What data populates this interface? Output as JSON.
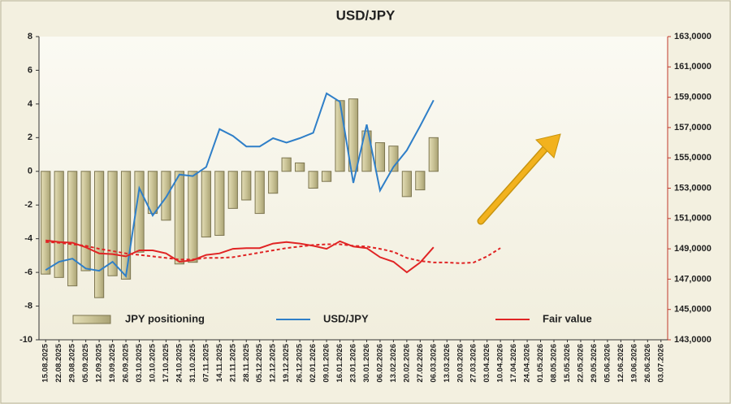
{
  "chart_data": {
    "type": "combo",
    "title": "USD/JPY",
    "categories": [
      "15.08.2025",
      "22.08.2025",
      "29.08.2025",
      "05.09.2025",
      "12.09.2025",
      "19.09.2025",
      "26.09.2025",
      "03.10.2025",
      "10.10.2025",
      "17.10.2025",
      "24.10.2025",
      "31.10.2025",
      "07.11.2025",
      "14.11.2025",
      "21.11.2025",
      "28.11.2025",
      "05.12.2025",
      "12.12.2025",
      "19.12.2025",
      "26.12.2025",
      "02.01.2026",
      "09.01.2026",
      "16.01.2026",
      "23.01.2026",
      "30.01.2026",
      "06.02.2026",
      "13.02.2026",
      "20.02.2026",
      "27.02.2026",
      "06.03.2026",
      "13.03.2026",
      "20.03.2026",
      "27.03.2026",
      "03.04.2026",
      "10.04.2026",
      "17.04.2026",
      "24.04.2026",
      "01.05.2026",
      "08.05.2026",
      "15.05.2026",
      "22.05.2026",
      "29.05.2026",
      "05.06.2026",
      "12.06.2026",
      "19.06.2026",
      "26.06.2026",
      "03.07.2026"
    ],
    "series": [
      {
        "name": "JPY positioning",
        "type": "bar",
        "axis": "y",
        "color": "#c9c295",
        "values": [
          -6.1,
          -6.3,
          -6.8,
          -5.9,
          -7.5,
          -6.2,
          -6.4,
          -4.8,
          -2.5,
          -2.9,
          -5.5,
          -5.4,
          -3.9,
          -3.8,
          -2.2,
          -1.7,
          -2.5,
          -1.3,
          0.8,
          0.5,
          -1.0,
          -0.6,
          4.2,
          4.3,
          2.4,
          1.7,
          1.5,
          -1.5,
          -1.1,
          2.0,
          null,
          null,
          null,
          null,
          null,
          null,
          null,
          null,
          null,
          null,
          null,
          null,
          null,
          null,
          null,
          null,
          null
        ]
      },
      {
        "name": "USD/JPY",
        "type": "line",
        "axis": "y2",
        "color": "#2f7fc8",
        "values": [
          147.6,
          148.15,
          148.35,
          147.7,
          147.55,
          148.15,
          147.2,
          153.0,
          151.2,
          152.4,
          153.9,
          153.8,
          154.4,
          156.9,
          156.45,
          155.75,
          155.75,
          156.3,
          156.0,
          156.3,
          156.65,
          159.25,
          158.7,
          153.35,
          157.2,
          152.85,
          154.4,
          155.5,
          157.1,
          158.8,
          null,
          null,
          null,
          null,
          null,
          null,
          null,
          null,
          null,
          null,
          null,
          null,
          null,
          null,
          null,
          null,
          null
        ]
      },
      {
        "name": "Fair value",
        "type": "line",
        "axis": "y2",
        "color": "#e02424",
        "values": [
          149.55,
          149.45,
          149.4,
          149.1,
          148.7,
          148.65,
          148.5,
          148.9,
          148.9,
          148.7,
          148.15,
          148.25,
          148.6,
          148.7,
          149.0,
          149.05,
          149.05,
          149.35,
          149.45,
          149.35,
          149.2,
          149.0,
          149.5,
          149.15,
          149.05,
          148.45,
          148.15,
          147.45,
          148.1,
          149.1,
          null,
          null,
          null,
          null,
          null,
          null,
          null,
          null,
          null,
          null,
          null,
          null,
          null,
          null,
          null,
          null,
          null
        ]
      },
      {
        "type": "line",
        "axis": "y2",
        "color": "#e02424",
        "line_style": "dashed",
        "values": [
          149.45,
          149.4,
          149.3,
          149.2,
          149.0,
          148.85,
          148.7,
          148.6,
          148.5,
          148.4,
          148.3,
          148.3,
          148.4,
          148.4,
          148.45,
          148.6,
          148.75,
          148.9,
          149.05,
          149.15,
          149.25,
          149.3,
          149.3,
          149.2,
          149.15,
          149.0,
          148.8,
          148.4,
          148.2,
          148.1,
          148.1,
          148.05,
          148.1,
          148.5,
          149.05,
          null,
          null,
          null,
          null,
          null,
          null,
          null,
          null,
          null,
          null,
          null,
          null
        ]
      }
    ],
    "ylim": [
      -10,
      8
    ],
    "yticks": [
      -10,
      -8,
      -6,
      -4,
      -2,
      0,
      2,
      4,
      6,
      8
    ],
    "y2lim": [
      143,
      163
    ],
    "y2ticks": [
      {
        "value": 143,
        "label": "143,0000"
      },
      {
        "value": 145,
        "label": "145,0000"
      },
      {
        "value": 147,
        "label": "147,0000"
      },
      {
        "value": 149,
        "label": "149,0000"
      },
      {
        "value": 151,
        "label": "151,0000"
      },
      {
        "value": 153,
        "label": "153,0000"
      },
      {
        "value": 155,
        "label": "155,0000"
      },
      {
        "value": 157,
        "label": "157,0000"
      },
      {
        "value": 159,
        "label": "159,0000"
      },
      {
        "value": 161,
        "label": "161,0000"
      },
      {
        "value": 163,
        "label": "163,0000"
      }
    ],
    "grid": false,
    "legend": "bottom"
  }
}
